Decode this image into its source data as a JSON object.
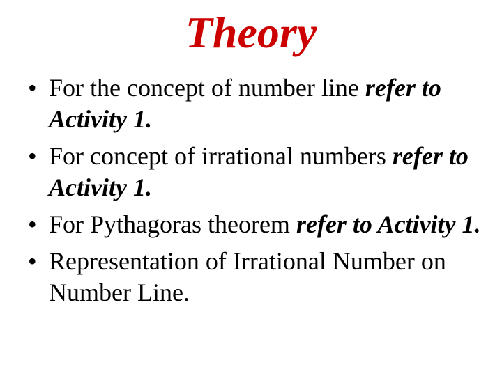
{
  "title": "Theory",
  "title_color": "#cc0000",
  "title_fontsize": 64,
  "body_fontsize": 36,
  "background_color": "#ffffff",
  "text_color": "#000000",
  "bullets": [
    {
      "plain": "For the concept of number line ",
      "emphasis": "refer to Activity 1."
    },
    {
      "plain": "For concept of irrational numbers ",
      "emphasis": "refer to Activity 1."
    },
    {
      "plain": "For Pythagoras theorem ",
      "emphasis": "refer to Activity 1."
    },
    {
      "plain": "Representation of Irrational Number on Number Line.",
      "emphasis": ""
    }
  ]
}
